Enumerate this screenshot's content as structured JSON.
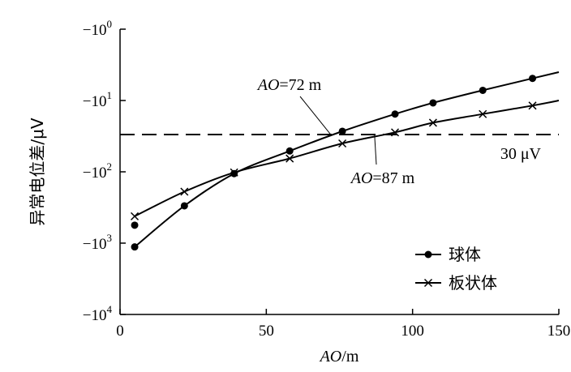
{
  "chart_data": {
    "type": "line",
    "title": "",
    "xlabel_italic": "AO",
    "xlabel_unit": "/m",
    "ylabel": "异常电位差/μV",
    "x_axis": {
      "min": 0,
      "max": 150,
      "ticks": [
        0,
        50,
        100,
        150
      ],
      "tick_labels": [
        "0",
        "50",
        "100",
        "150"
      ]
    },
    "y_axis": {
      "scale": "log",
      "direction": "negative values, |value| increasing downward",
      "min_exponent": 0,
      "max_exponent": 4,
      "tick_labels": [
        {
          "base": "−10",
          "exp": "0",
          "value": -1
        },
        {
          "base": "−10",
          "exp": "1",
          "value": -10
        },
        {
          "base": "−10",
          "exp": "2",
          "value": -100
        },
        {
          "base": "−10",
          "exp": "3",
          "value": -1000
        },
        {
          "base": "−10",
          "exp": "4",
          "value": -10000
        }
      ]
    },
    "series": [
      {
        "name": "球体",
        "marker": "dot",
        "x": [
          5,
          22,
          39,
          58,
          76,
          94,
          107,
          124,
          141
        ],
        "y": [
          -1130,
          -300,
          -106,
          -51,
          -27,
          -15.5,
          -10.8,
          -7.2,
          -4.9
        ],
        "extra_points": [
          {
            "x": 5,
            "y": -560
          }
        ],
        "curve_end": {
          "x": 150,
          "y": -4.0
        }
      },
      {
        "name": "板状体",
        "marker": "cross",
        "x": [
          5,
          22,
          39,
          58,
          76,
          94,
          107,
          124,
          141
        ],
        "y": [
          -420,
          -190,
          -102,
          -65,
          -40,
          -28,
          -20.5,
          -15.5,
          -11.8
        ],
        "curve_end": {
          "x": 150,
          "y": -10
        }
      }
    ],
    "reference_line": {
      "value": -30,
      "style": "dashed",
      "label": "30 μV"
    },
    "annotations": [
      {
        "text_italic": "AO",
        "text_rest": "=72 m",
        "x": 72,
        "y": -30
      },
      {
        "text_italic": "AO",
        "text_rest": "=87 m",
        "x": 87,
        "y": -30
      }
    ],
    "legend": {
      "position": "bottom-right",
      "entries": [
        "球体",
        "板状体"
      ]
    },
    "grid": false
  }
}
